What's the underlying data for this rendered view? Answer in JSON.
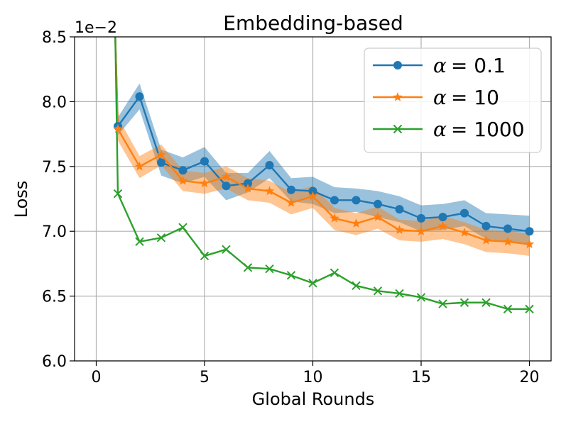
{
  "chart_data": {
    "type": "line",
    "title": "Embedding-based",
    "xlabel": "Global Rounds",
    "ylabel": "Loss",
    "scale_label": "1e−2",
    "xlim": [
      -1,
      21
    ],
    "ylim": [
      6.0,
      8.5
    ],
    "xticks": [
      0,
      5,
      10,
      15,
      20
    ],
    "yticks": [
      6.0,
      6.5,
      7.0,
      7.5,
      8.0,
      8.5
    ],
    "xtick_labels": [
      "0",
      "5",
      "10",
      "15",
      "20"
    ],
    "ytick_labels": [
      "6.0",
      "6.5",
      "7.0",
      "7.5",
      "8.0",
      "8.5"
    ],
    "grid": true,
    "legend_position": "top-right",
    "x": [
      1,
      2,
      3,
      4,
      5,
      6,
      7,
      8,
      9,
      10,
      11,
      12,
      13,
      14,
      15,
      16,
      17,
      18,
      19,
      20
    ],
    "series": [
      {
        "name": "α = 0.1",
        "legend_symbol": "α",
        "legend_value": "= 0.1",
        "color": "#1f77b4",
        "marker": "circle",
        "start_value": 8.5,
        "values": [
          7.81,
          8.04,
          7.53,
          7.47,
          7.54,
          7.35,
          7.37,
          7.51,
          7.32,
          7.31,
          7.24,
          7.24,
          7.21,
          7.17,
          7.1,
          7.11,
          7.14,
          7.04,
          7.02,
          7.0
        ],
        "lower": [
          7.74,
          7.94,
          7.43,
          7.37,
          7.42,
          7.24,
          7.3,
          7.41,
          7.23,
          7.21,
          7.14,
          7.15,
          7.11,
          7.07,
          7.0,
          7.01,
          7.04,
          6.94,
          6.92,
          6.89
        ],
        "upper": [
          7.88,
          8.14,
          7.63,
          7.57,
          7.65,
          7.45,
          7.45,
          7.62,
          7.41,
          7.42,
          7.34,
          7.33,
          7.31,
          7.27,
          7.2,
          7.21,
          7.24,
          7.14,
          7.13,
          7.12
        ]
      },
      {
        "name": "α = 10",
        "legend_symbol": "α",
        "legend_value": "= 10",
        "color": "#ff7f0e",
        "marker": "star",
        "start_value": 8.5,
        "values": [
          7.79,
          7.5,
          7.59,
          7.39,
          7.37,
          7.42,
          7.33,
          7.31,
          7.22,
          7.27,
          7.1,
          7.06,
          7.11,
          7.01,
          7.0,
          7.04,
          6.99,
          6.93,
          6.92,
          6.9
        ],
        "lower": [
          7.7,
          7.41,
          7.51,
          7.31,
          7.29,
          7.33,
          7.24,
          7.22,
          7.13,
          7.18,
          7.01,
          6.97,
          7.02,
          6.93,
          6.92,
          6.94,
          6.9,
          6.84,
          6.83,
          6.81
        ],
        "upper": [
          7.88,
          7.58,
          7.67,
          7.47,
          7.45,
          7.5,
          7.41,
          7.39,
          7.3,
          7.35,
          7.18,
          7.14,
          7.19,
          7.09,
          7.08,
          7.12,
          7.07,
          7.01,
          7.0,
          6.98
        ]
      },
      {
        "name": "α = 1000",
        "legend_symbol": "α",
        "legend_value": "= 1000",
        "color": "#2ca02c",
        "marker": "x",
        "start_value": 8.5,
        "values": [
          7.29,
          6.92,
          6.95,
          7.03,
          6.81,
          6.86,
          6.72,
          6.71,
          6.66,
          6.6,
          6.68,
          6.58,
          6.54,
          6.52,
          6.49,
          6.44,
          6.45,
          6.45,
          6.4,
          6.4
        ]
      }
    ]
  }
}
